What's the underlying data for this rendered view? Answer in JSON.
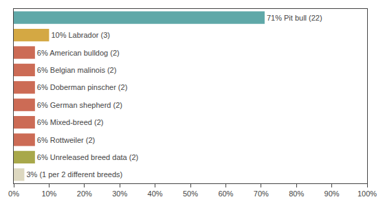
{
  "chart_data": {
    "type": "bar",
    "orientation": "horizontal",
    "categories": [
      "71% Pit bull (22)",
      "10% Labrador (3)",
      "6% American bulldog (2)",
      "6% Belgian malinois (2)",
      "6% Doberman pinscher (2)",
      "6% German shepherd (2)",
      "6% Mixed-breed (2)",
      "6% Rottweiler (2)",
      "6% Unreleased breed data (2)",
      "3% (1 per 2 different breeds)"
    ],
    "values": [
      71,
      10,
      6,
      6,
      6,
      6,
      6,
      6,
      6,
      3
    ],
    "colors": [
      "#5fa8a8",
      "#d4a843",
      "#cc6b55",
      "#cc6b55",
      "#cc6b55",
      "#cc6b55",
      "#cc6b55",
      "#cc6b55",
      "#a8a84a",
      "#ddd8c0"
    ],
    "xlim": [
      0,
      100
    ],
    "xticks": [
      {
        "value": 0,
        "label": "0%"
      },
      {
        "value": 10,
        "label": "10%"
      },
      {
        "value": 20,
        "label": "20%"
      },
      {
        "value": 30,
        "label": "30%"
      },
      {
        "value": 40,
        "label": "40%"
      },
      {
        "value": 50,
        "label": "50%"
      },
      {
        "value": 60,
        "label": "60%"
      },
      {
        "value": 70,
        "label": "70%"
      },
      {
        "value": 80,
        "label": "80%"
      },
      {
        "value": 90,
        "label": "90%"
      },
      {
        "value": 100,
        "label": "100%"
      }
    ],
    "grid": false,
    "tick_labels": "x"
  }
}
